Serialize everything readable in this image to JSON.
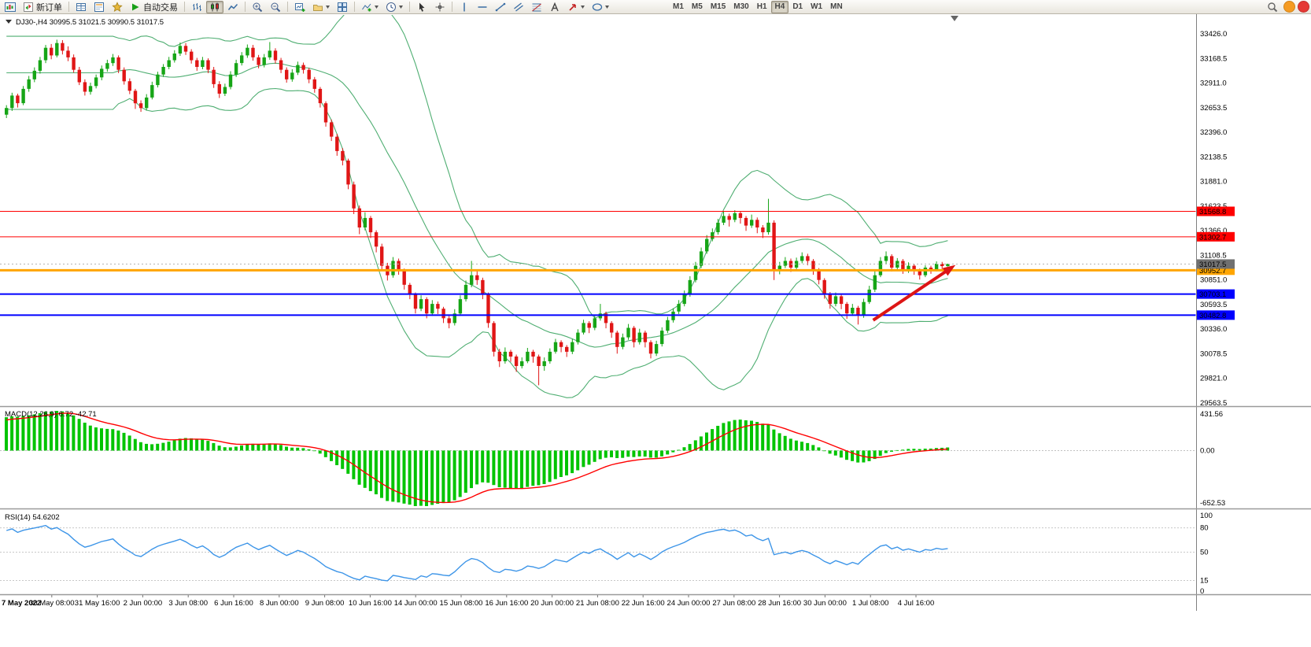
{
  "toolbar": {
    "new_order_label": "新订单",
    "auto_trading_label": "自动交易",
    "timeframes": [
      "M1",
      "M5",
      "M15",
      "M30",
      "H1",
      "H4",
      "D1",
      "W1",
      "MN"
    ],
    "active_timeframe": "H4",
    "active_chart_type": "candlestick",
    "badge_colors": [
      "#f59b22",
      "#e53935"
    ]
  },
  "chart_data": {
    "type": "candlestick",
    "symbol": "DJ30-",
    "timeframe": "H4",
    "title": "DJ30-,H4 30995.5 31021.5 30990.5 31017.5",
    "ohlc": {
      "open": 30995.5,
      "high": 31021.5,
      "low": 30990.5,
      "close": 31017.5
    },
    "bid": 31017.5,
    "colors": {
      "bull": "#16a516",
      "bear": "#e01616",
      "background": "#ffffff",
      "axis_text": "#000000"
    },
    "price_ticks": [
      33426.0,
      33168.5,
      32911.0,
      32653.5,
      32396.0,
      32138.5,
      31881.0,
      31623.5,
      31366.0,
      31108.5,
      30851.0,
      30593.5,
      30336.0,
      30078.5,
      29821.0,
      29563.5
    ],
    "hlines": [
      {
        "value": 31568.8,
        "color": "#ff0000",
        "width": 1
      },
      {
        "value": 31302.7,
        "color": "#ff0000",
        "width": 1
      },
      {
        "value": 30952.7,
        "color": "#ffa500",
        "width": 3
      },
      {
        "value": 30703.1,
        "color": "#0000ff",
        "width": 2
      },
      {
        "value": 30482.8,
        "color": "#0000ff",
        "width": 2
      }
    ],
    "annotations": [
      {
        "type": "trend-arrow",
        "from": {
          "index": 155,
          "price": 30430
        },
        "to": {
          "index": 169,
          "price": 30980
        },
        "color": "#dd1515"
      }
    ],
    "indicators": {
      "bollinger": {
        "period": 20,
        "deviation": 2,
        "color": "#4fae72"
      },
      "macd": {
        "label": "MACD(12,26,9) 6.72 -42.71",
        "histogram_color": "#00c400",
        "signal_color": "#ff0000",
        "ticks": [
          431.56,
          0,
          -652.53
        ]
      },
      "rsi": {
        "label": "RSI(14) 54.6202",
        "color": "#3d95e8",
        "ticks": [
          100,
          80,
          50,
          15,
          0
        ],
        "levels": [
          80,
          50,
          15
        ]
      }
    },
    "time_labels": [
      "7 May 2022",
      "30 May 08:00",
      "31 May 16:00",
      "2 Jun 00:00",
      "3 Jun 08:00",
      "6 Jun 16:00",
      "8 Jun 00:00",
      "9 Jun 08:00",
      "10 Jun 16:00",
      "14 Jun 00:00",
      "15 Jun 08:00",
      "16 Jun 16:00",
      "20 Jun 00:00",
      "21 Jun 08:00",
      "22 Jun 16:00",
      "24 Jun 00:00",
      "27 Jun 08:00",
      "28 Jun 16:00",
      "30 Jun 00:00",
      "1 Jul 08:00",
      "4 Jul 16:00"
    ],
    "candles": [
      [
        32580,
        32680,
        32545,
        32650
      ],
      [
        32650,
        32810,
        32620,
        32780
      ],
      [
        32780,
        32800,
        32655,
        32700
      ],
      [
        32700,
        32880,
        32680,
        32850
      ],
      [
        32850,
        32985,
        32820,
        32950
      ],
      [
        32950,
        33075,
        32920,
        33040
      ],
      [
        33040,
        33185,
        33010,
        33150
      ],
      [
        33150,
        33310,
        33120,
        33280
      ],
      [
        33280,
        33320,
        33160,
        33200
      ],
      [
        33200,
        33365,
        33180,
        33330
      ],
      [
        33330,
        33360,
        33210,
        33250
      ],
      [
        33250,
        33295,
        33140,
        33180
      ],
      [
        33180,
        33210,
        33020,
        33050
      ],
      [
        33050,
        33080,
        32890,
        32920
      ],
      [
        32920,
        32950,
        32780,
        32820
      ],
      [
        32820,
        32915,
        32790,
        32880
      ],
      [
        32880,
        33000,
        32855,
        32970
      ],
      [
        32970,
        33095,
        32940,
        33060
      ],
      [
        33060,
        33155,
        33030,
        33120
      ],
      [
        33120,
        33215,
        33090,
        33180
      ],
      [
        33180,
        33200,
        33015,
        33050
      ],
      [
        33050,
        33075,
        32895,
        32930
      ],
      [
        32930,
        32960,
        32795,
        32830
      ],
      [
        32830,
        32850,
        32640,
        32700
      ],
      [
        32700,
        32730,
        32610,
        32650
      ],
      [
        32650,
        32795,
        32625,
        32760
      ],
      [
        32760,
        32925,
        32740,
        32890
      ],
      [
        32890,
        33030,
        32865,
        33000
      ],
      [
        33000,
        33110,
        32975,
        33080
      ],
      [
        33080,
        33185,
        33055,
        33150
      ],
      [
        33150,
        33255,
        33125,
        33220
      ],
      [
        33220,
        33335,
        33195,
        33300
      ],
      [
        33300,
        33330,
        33205,
        33240
      ],
      [
        33240,
        33265,
        33115,
        33150
      ],
      [
        33150,
        33175,
        33040,
        33080
      ],
      [
        33080,
        33185,
        33055,
        33150
      ],
      [
        33150,
        33170,
        33015,
        33050
      ],
      [
        33050,
        33080,
        32860,
        32900
      ],
      [
        32900,
        32930,
        32755,
        32800
      ],
      [
        32800,
        32905,
        32775,
        32870
      ],
      [
        32870,
        33035,
        32845,
        33000
      ],
      [
        33000,
        33155,
        32975,
        33120
      ],
      [
        33120,
        33235,
        33095,
        33200
      ],
      [
        33200,
        33315,
        33175,
        33280
      ],
      [
        33280,
        33310,
        33145,
        33180
      ],
      [
        33180,
        33205,
        33065,
        33100
      ],
      [
        33100,
        33215,
        33075,
        33180
      ],
      [
        33180,
        33340,
        33155,
        33250
      ],
      [
        33250,
        33275,
        33115,
        33150
      ],
      [
        33150,
        33175,
        33015,
        33050
      ],
      [
        33050,
        33075,
        32915,
        32950
      ],
      [
        32950,
        33055,
        32925,
        33020
      ],
      [
        33020,
        33135,
        32995,
        33100
      ],
      [
        33100,
        33125,
        33010,
        33050
      ],
      [
        33050,
        33070,
        32910,
        32950
      ],
      [
        32950,
        32975,
        32810,
        32850
      ],
      [
        32850,
        32870,
        32655,
        32700
      ],
      [
        32700,
        32720,
        32455,
        32500
      ],
      [
        32500,
        32530,
        32305,
        32350
      ],
      [
        32350,
        32380,
        32150,
        32200
      ],
      [
        32200,
        32230,
        32050,
        32100
      ],
      [
        32100,
        32120,
        31800,
        31850
      ],
      [
        31850,
        31880,
        31540,
        31600
      ],
      [
        31600,
        31630,
        31330,
        31400
      ],
      [
        31400,
        31560,
        31370,
        31500
      ],
      [
        31500,
        31520,
        31290,
        31350
      ],
      [
        31350,
        31370,
        31140,
        31200
      ],
      [
        31200,
        31230,
        30950,
        31000
      ],
      [
        31000,
        31030,
        30845,
        30900
      ],
      [
        30900,
        31090,
        30875,
        31050
      ],
      [
        31050,
        31075,
        30905,
        30950
      ],
      [
        30950,
        30970,
        30750,
        30800
      ],
      [
        30800,
        30820,
        30650,
        30700
      ],
      [
        30700,
        30720,
        30500,
        30550
      ],
      [
        30550,
        30690,
        30525,
        30650
      ],
      [
        30650,
        30670,
        30450,
        30500
      ],
      [
        30500,
        30640,
        30475,
        30600
      ],
      [
        30600,
        30625,
        30495,
        30550
      ],
      [
        30550,
        30570,
        30400,
        30450
      ],
      [
        30450,
        30475,
        30345,
        30400
      ],
      [
        30400,
        30545,
        30375,
        30500
      ],
      [
        30500,
        30690,
        30475,
        30650
      ],
      [
        30650,
        30845,
        30625,
        30800
      ],
      [
        30800,
        31050,
        30775,
        30900
      ],
      [
        30900,
        30950,
        30800,
        30850
      ],
      [
        30850,
        30875,
        30650,
        30700
      ],
      [
        30700,
        30720,
        30350,
        30400
      ],
      [
        30400,
        30420,
        30050,
        30100
      ],
      [
        30100,
        30130,
        29940,
        30000
      ],
      [
        30000,
        30145,
        29975,
        30100
      ],
      [
        30100,
        30120,
        29995,
        30050
      ],
      [
        30050,
        30070,
        29890,
        29950
      ],
      [
        29950,
        30040,
        29925,
        30000
      ],
      [
        30000,
        30140,
        29980,
        30100
      ],
      [
        30100,
        30120,
        29985,
        30050
      ],
      [
        30050,
        30070,
        29750,
        29950
      ],
      [
        29950,
        30040,
        29900,
        30000
      ],
      [
        30000,
        30135,
        29975,
        30100
      ],
      [
        30100,
        30235,
        30080,
        30200
      ],
      [
        30200,
        30220,
        30095,
        30150
      ],
      [
        30150,
        30170,
        30045,
        30100
      ],
      [
        30100,
        30235,
        30075,
        30200
      ],
      [
        30200,
        30335,
        30175,
        30300
      ],
      [
        30300,
        30435,
        30280,
        30400
      ],
      [
        30400,
        30420,
        30295,
        30350
      ],
      [
        30350,
        30485,
        30325,
        30450
      ],
      [
        30450,
        30600,
        30425,
        30500
      ],
      [
        30500,
        30520,
        30345,
        30400
      ],
      [
        30400,
        30420,
        30245,
        30300
      ],
      [
        30300,
        30320,
        30080,
        30150
      ],
      [
        30150,
        30290,
        30125,
        30250
      ],
      [
        30250,
        30390,
        30225,
        30350
      ],
      [
        30350,
        30370,
        30145,
        30200
      ],
      [
        30200,
        30340,
        30175,
        30300
      ],
      [
        30300,
        30320,
        30145,
        30200
      ],
      [
        30200,
        30220,
        30030,
        30080
      ],
      [
        30080,
        30215,
        30055,
        30180
      ],
      [
        30180,
        30355,
        30155,
        30320
      ],
      [
        30320,
        30465,
        30295,
        30430
      ],
      [
        30430,
        30555,
        30405,
        30520
      ],
      [
        30520,
        30640,
        30495,
        30600
      ],
      [
        30600,
        30740,
        30575,
        30700
      ],
      [
        30700,
        30890,
        30675,
        30850
      ],
      [
        30850,
        31040,
        30825,
        31000
      ],
      [
        31000,
        31190,
        30975,
        31150
      ],
      [
        31150,
        31320,
        31125,
        31280
      ],
      [
        31280,
        31390,
        31255,
        31350
      ],
      [
        31350,
        31490,
        31325,
        31450
      ],
      [
        31450,
        31565,
        31425,
        31520
      ],
      [
        31520,
        31545,
        31410,
        31480
      ],
      [
        31480,
        31580,
        31455,
        31550
      ],
      [
        31550,
        31570,
        31440,
        31500
      ],
      [
        31500,
        31520,
        31365,
        31420
      ],
      [
        31420,
        31535,
        31395,
        31480
      ],
      [
        31480,
        31505,
        31340,
        31400
      ],
      [
        31400,
        31425,
        31290,
        31350
      ],
      [
        31350,
        31700,
        31325,
        31450
      ],
      [
        31450,
        31475,
        30850,
        30950
      ],
      [
        30950,
        31040,
        30910,
        31000
      ],
      [
        31000,
        31090,
        30975,
        31050
      ],
      [
        31050,
        31075,
        30935,
        30980
      ],
      [
        30980,
        31085,
        30955,
        31050
      ],
      [
        31050,
        31140,
        31025,
        31100
      ],
      [
        31100,
        31125,
        31005,
        31050
      ],
      [
        31050,
        31070,
        30905,
        30950
      ],
      [
        30950,
        30975,
        30805,
        30850
      ],
      [
        30850,
        30870,
        30655,
        30700
      ],
      [
        30700,
        30725,
        30550,
        30600
      ],
      [
        30600,
        30720,
        30575,
        30680
      ],
      [
        30680,
        30700,
        30545,
        30600
      ],
      [
        30600,
        30620,
        30445,
        30500
      ],
      [
        30500,
        30600,
        30475,
        30560
      ],
      [
        30560,
        30580,
        30385,
        30480
      ],
      [
        30480,
        30655,
        30455,
        30620
      ],
      [
        30620,
        30790,
        30600,
        30750
      ],
      [
        30750,
        30945,
        30725,
        30900
      ],
      [
        30900,
        31090,
        30880,
        31050
      ],
      [
        31050,
        31150,
        31020,
        31100
      ],
      [
        31100,
        31120,
        30940,
        30980
      ],
      [
        30980,
        31080,
        30955,
        31050
      ],
      [
        31050,
        31070,
        30915,
        30950
      ],
      [
        30950,
        31035,
        30925,
        31000
      ],
      [
        31000,
        31020,
        30905,
        30950
      ],
      [
        30950,
        30970,
        30855,
        30900
      ],
      [
        30900,
        31005,
        30880,
        30980
      ],
      [
        30980,
        31000,
        30915,
        30960
      ],
      [
        30960,
        31045,
        30940,
        31020
      ],
      [
        31020,
        31040,
        30960,
        30995.5
      ],
      [
        30995.5,
        31021.5,
        30990.5,
        31017.5
      ]
    ]
  }
}
